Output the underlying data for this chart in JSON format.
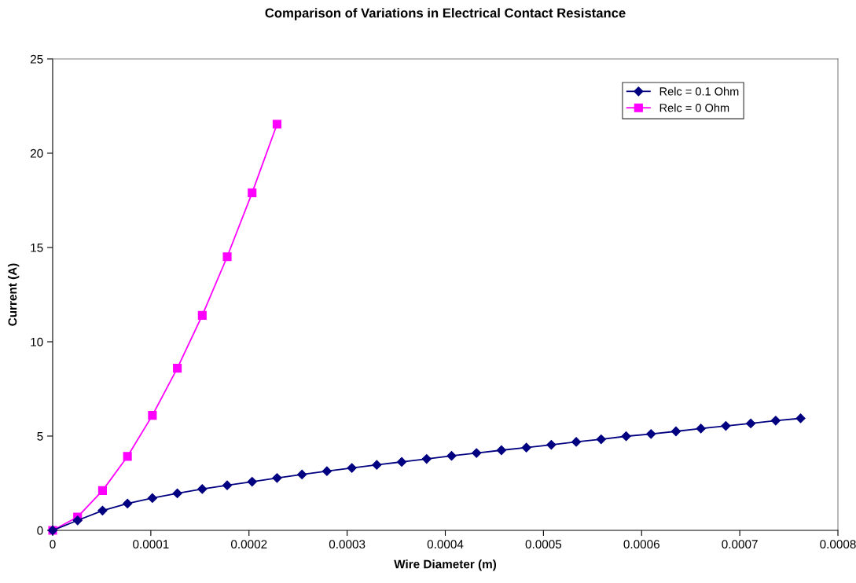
{
  "chart_data": {
    "type": "line",
    "title": "Comparison of Variations in Electrical Contact Resistance",
    "xlabel": "Wire Diameter (m)",
    "ylabel": "Current (A)",
    "series": [
      {
        "name": "Relc = 0.1 Ohm",
        "color": "#000080",
        "marker": "diamond",
        "x": [
          0,
          2.54e-05,
          5.08e-05,
          7.62e-05,
          0.0001016,
          0.000127,
          0.0001524,
          0.0001778,
          0.0002032,
          0.0002286,
          0.000254,
          0.0002794,
          0.0003048,
          0.0003302,
          0.0003556,
          0.000381,
          0.0004064,
          0.0004318,
          0.0004572,
          0.0004826,
          0.000508,
          0.0005334,
          0.0005588,
          0.0005842,
          0.0006096,
          0.000635,
          0.0006604,
          0.0006858,
          0.0007112,
          0.0007366,
          0.000762
        ],
        "values": [
          0,
          0.53,
          1.05,
          1.42,
          1.71,
          1.96,
          2.19,
          2.39,
          2.58,
          2.78,
          2.96,
          3.14,
          3.31,
          3.47,
          3.63,
          3.79,
          3.95,
          4.1,
          4.25,
          4.39,
          4.54,
          4.69,
          4.83,
          4.99,
          5.11,
          5.25,
          5.4,
          5.54,
          5.67,
          5.82,
          5.94
        ]
      },
      {
        "name": "Relc = 0 Ohm",
        "color": "#ff00ff",
        "marker": "square",
        "x": [
          0,
          2.54e-05,
          5.08e-05,
          7.62e-05,
          0.0001016,
          0.000127,
          0.0001524,
          0.0001778,
          0.0002032,
          0.0002286
        ],
        "values": [
          0,
          0.71,
          2.11,
          3.92,
          6.1,
          8.6,
          11.4,
          14.51,
          17.9,
          21.54
        ]
      }
    ],
    "xlim": [
      0,
      0.0008
    ],
    "xticks": [
      0,
      0.0001,
      0.0002,
      0.0003,
      0.0004,
      0.0005,
      0.0006,
      0.0007,
      0.0008
    ],
    "ylim": [
      0,
      25
    ],
    "yticks": [
      0,
      5,
      10,
      15,
      20,
      25
    ],
    "grid": false,
    "legend": "top right",
    "line_style": "solid"
  }
}
